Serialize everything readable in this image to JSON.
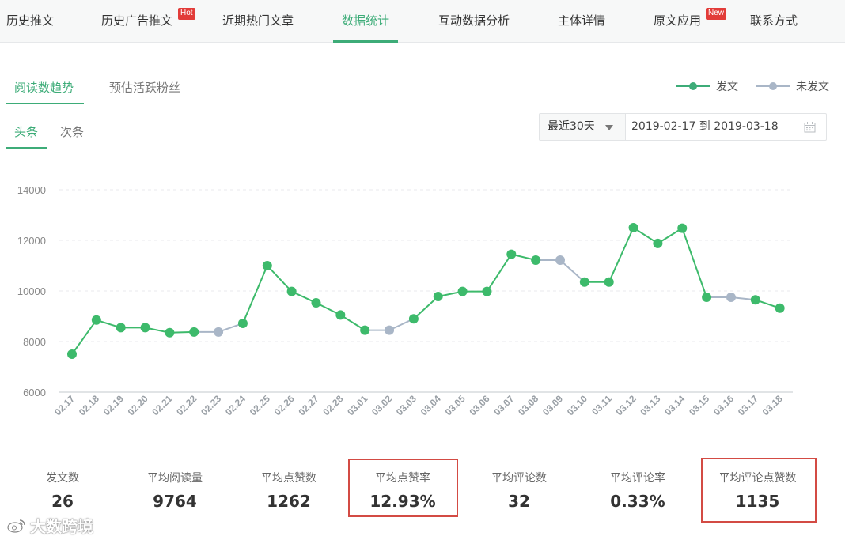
{
  "nav": {
    "items": [
      {
        "label": "历史推文"
      },
      {
        "label": "历史广告推文",
        "badge": "Hot"
      },
      {
        "label": "近期热门文章"
      },
      {
        "label": "数据统计",
        "active": true
      },
      {
        "label": "互动数据分析"
      },
      {
        "label": "主体详情"
      },
      {
        "label": "原文应用",
        "badge": "New"
      },
      {
        "label": "联系方式"
      }
    ]
  },
  "tabs": {
    "primary": [
      {
        "label": "阅读数趋势",
        "active": true
      },
      {
        "label": "预估活跃粉丝"
      }
    ],
    "secondary": [
      {
        "label": "头条",
        "active": true
      },
      {
        "label": "次条"
      }
    ]
  },
  "legend": [
    {
      "label": "发文",
      "color": "#3dba6b"
    },
    {
      "label": "未发文",
      "color": "#a9b6c7"
    }
  ],
  "picker": {
    "range": "最近30天",
    "dates": "2019-02-17 到 2019-03-18"
  },
  "chart_data": {
    "type": "line",
    "x": [
      "02.17",
      "02.18",
      "02.19",
      "02.20",
      "02.21",
      "02.22",
      "02.23",
      "02.24",
      "02.25",
      "02.26",
      "02.27",
      "02.28",
      "03.01",
      "03.02",
      "03.03",
      "03.04",
      "03.05",
      "03.06",
      "03.07",
      "03.08",
      "03.09",
      "03.10",
      "03.11",
      "03.12",
      "03.13",
      "03.14",
      "03.15",
      "03.16",
      "03.17",
      "03.18"
    ],
    "series": [
      {
        "name": "发文",
        "values": [
          7500,
          8850,
          8550,
          8550,
          8350,
          8380,
          8380,
          8720,
          11000,
          9980,
          9530,
          9050,
          8450,
          8450,
          8900,
          9780,
          9980,
          9980,
          11450,
          11220,
          11220,
          10350,
          10350,
          12500,
          11880,
          12480,
          9750,
          9750,
          9650,
          9320
        ],
        "posted": [
          true,
          true,
          true,
          true,
          true,
          true,
          false,
          true,
          true,
          true,
          true,
          true,
          true,
          false,
          true,
          true,
          true,
          true,
          true,
          true,
          false,
          true,
          true,
          true,
          true,
          true,
          true,
          false,
          true,
          true
        ]
      }
    ],
    "ylim": [
      6000,
      14000
    ],
    "yticks": [
      6000,
      8000,
      10000,
      12000,
      14000
    ],
    "grid": true,
    "legend_position": "top-right",
    "colors": {
      "posted": "#3dba6b",
      "not_posted": "#a9b6c7"
    }
  },
  "stats": [
    {
      "label": "发文数",
      "value": "26"
    },
    {
      "label": "平均阅读量",
      "value": "9764"
    },
    {
      "label": "平均点赞数",
      "value": "1262"
    },
    {
      "label": "平均点赞率",
      "value": "12.93%",
      "highlight": true
    },
    {
      "label": "平均评论数",
      "value": "32"
    },
    {
      "label": "平均评论率",
      "value": "0.33%"
    },
    {
      "label": "平均评论点赞数",
      "value": "1135",
      "highlight": true
    }
  ],
  "watermark": "大数跨境",
  "colors": {
    "accent": "#3dac78",
    "highlight_box": "#d34b44"
  }
}
